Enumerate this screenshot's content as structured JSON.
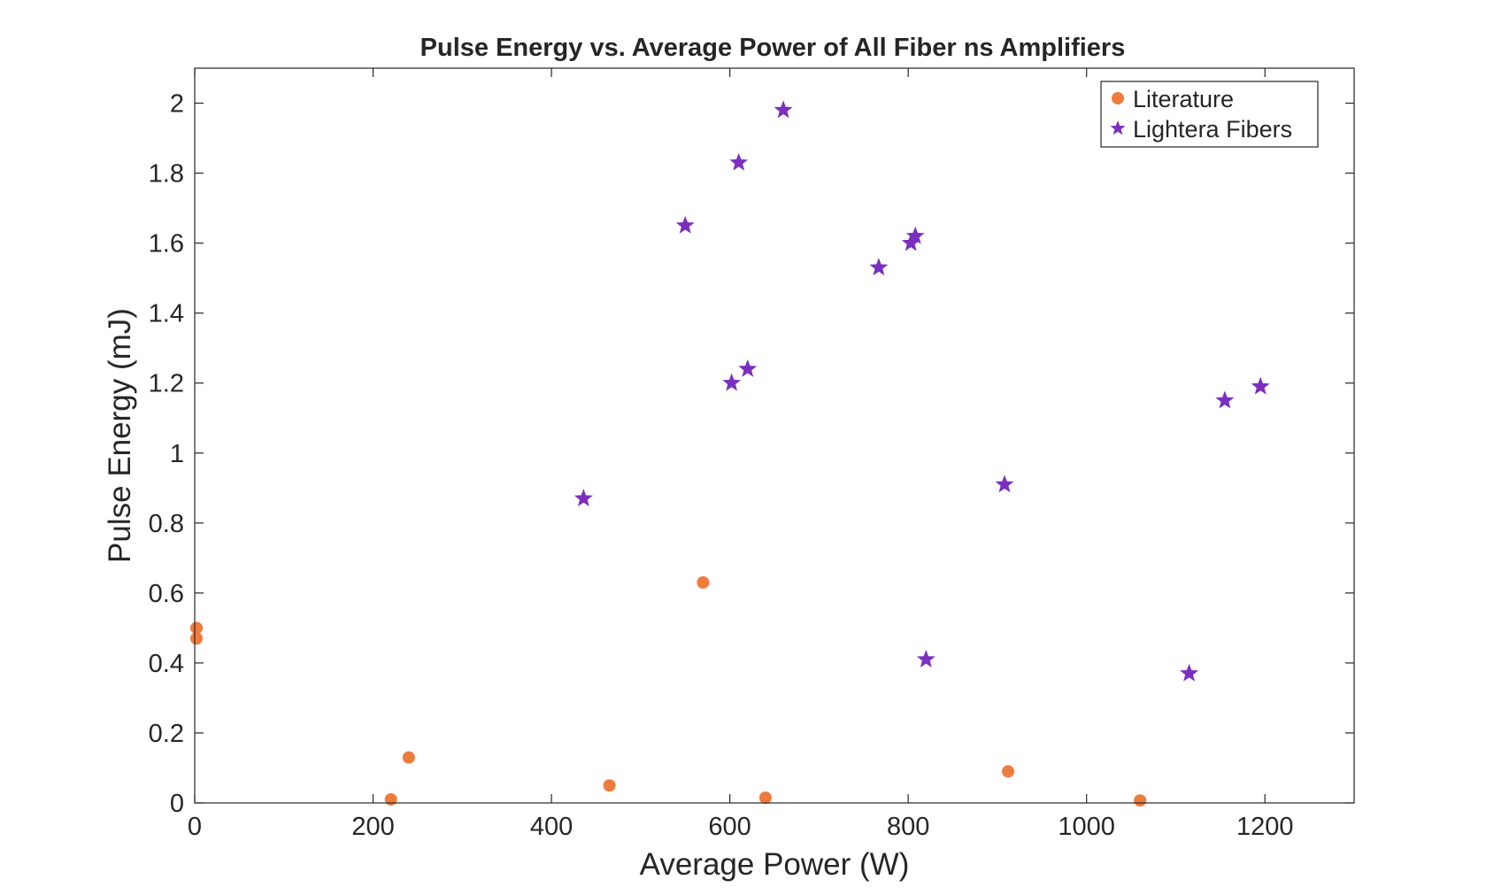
{
  "chart_data": {
    "type": "scatter",
    "title": "Pulse Energy vs. Average Power of All Fiber ns Amplifiers",
    "xlabel": "Average Power (W)",
    "ylabel": "Pulse Energy (mJ)",
    "xlim": [
      0,
      1300
    ],
    "ylim": [
      0,
      2.1
    ],
    "xticks": [
      0,
      200,
      400,
      600,
      800,
      1000,
      1200
    ],
    "xtick_labels": [
      "0",
      "200",
      "400",
      "600",
      "800",
      "1000",
      "1200"
    ],
    "yticks": [
      0,
      0.2,
      0.4,
      0.6,
      0.8,
      1,
      1.2,
      1.4,
      1.6,
      1.8,
      2
    ],
    "ytick_labels": [
      "0",
      "0.2",
      "0.4",
      "0.6",
      "0.8",
      "1",
      "1.2",
      "1.4",
      "1.6",
      "1.8",
      "2"
    ],
    "grid": false,
    "legend_position": "top-right",
    "series": [
      {
        "name": "Literature",
        "marker": "circle",
        "color": "#EF7B3C",
        "points": [
          [
            2,
            0.5
          ],
          [
            2,
            0.47
          ],
          [
            220,
            0.01
          ],
          [
            240,
            0.13
          ],
          [
            465,
            0.05
          ],
          [
            570,
            0.63
          ],
          [
            640,
            0.015
          ],
          [
            912,
            0.09
          ],
          [
            1060,
            0.007
          ]
        ]
      },
      {
        "name": "Lightera Fibers",
        "marker": "star",
        "color": "#7B2FBE",
        "points": [
          [
            436,
            0.87
          ],
          [
            550,
            1.65
          ],
          [
            602,
            1.2
          ],
          [
            610,
            1.83
          ],
          [
            620,
            1.24
          ],
          [
            660,
            1.98
          ],
          [
            767,
            1.53
          ],
          [
            803,
            1.6
          ],
          [
            808,
            1.62
          ],
          [
            820,
            0.41
          ],
          [
            908,
            0.91
          ],
          [
            1115,
            0.37
          ],
          [
            1155,
            1.15
          ],
          [
            1195,
            1.19
          ]
        ]
      }
    ]
  }
}
